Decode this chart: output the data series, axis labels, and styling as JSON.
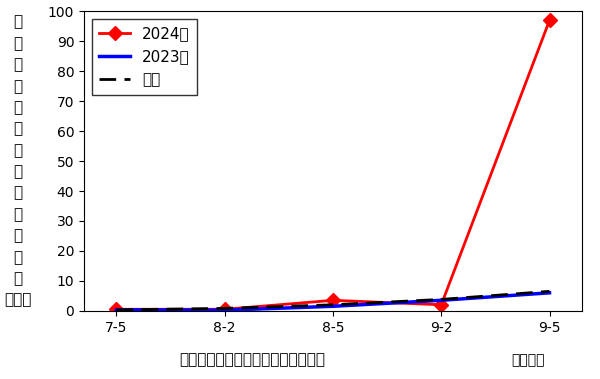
{
  "x_labels": [
    "7-5",
    "8-2",
    "8-5",
    "9-2",
    "9-5"
  ],
  "x_positions": [
    0,
    1,
    2,
    3,
    4
  ],
  "series_2024": [
    0.5,
    0.5,
    3.5,
    2.0,
    97.0
  ],
  "series_2023": [
    0.3,
    0.2,
    1.5,
    3.5,
    6.0
  ],
  "series_avg": [
    0.3,
    0.8,
    2.0,
    3.8,
    6.5
  ],
  "color_2024": "#ff0000",
  "color_2023": "#0000ff",
  "color_avg": "#000000",
  "ylim": [
    0,
    100
  ],
  "yticks": [
    0,
    10,
    20,
    30,
    40,
    50,
    60,
    70,
    80,
    90,
    100
  ],
  "ylabel_chars": [
    "１",
    "０",
    "株",
    "当",
    "た",
    "り",
    "払",
    "い",
    "落",
    "し",
    "幼",
    "虫",
    "数",
    "（頭）"
  ],
  "xlabel_main": "ハスモンヨトウ幼虫の発生密度推移",
  "xlabel_right": "月－半旬",
  "legend_2024": "2024年",
  "legend_2023": "2023年",
  "legend_avg": "平年",
  "tick_fontsize": 10,
  "axis_fontsize": 11,
  "legend_fontsize": 11
}
